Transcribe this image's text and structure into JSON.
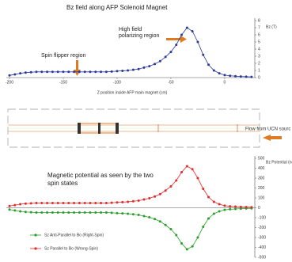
{
  "chart_data": [
    {
      "type": "line",
      "title": "Bz field along AFP Solenoid Magnet",
      "xlabel": "Z position inside AFP main magnet (cm)",
      "ylabel": "Bz (T)",
      "x": [
        -200,
        -195,
        -190,
        -185,
        -180,
        -175,
        -170,
        -165,
        -160,
        -155,
        -150,
        -145,
        -140,
        -135,
        -130,
        -125,
        -120,
        -115,
        -110,
        -105,
        -100,
        -95,
        -90,
        -85,
        -80,
        -75,
        -70,
        -65,
        -60,
        -55,
        -50,
        -45,
        -40,
        -35,
        -30,
        -25,
        -20,
        -15,
        -10,
        -5,
        0,
        5,
        10,
        15,
        20,
        25
      ],
      "series": [
        {
          "name": "Bz",
          "color": "#2b3a9a",
          "values": [
            0.3,
            0.45,
            0.6,
            0.7,
            0.75,
            0.8,
            0.8,
            0.8,
            0.8,
            0.8,
            0.8,
            0.8,
            0.8,
            0.8,
            0.8,
            0.8,
            0.8,
            0.8,
            0.8,
            0.85,
            0.9,
            0.95,
            1.0,
            1.1,
            1.2,
            1.4,
            1.6,
            1.9,
            2.3,
            2.9,
            3.6,
            4.6,
            6.0,
            7.0,
            6.5,
            5.0,
            3.2,
            1.8,
            1.0,
            0.6,
            0.35,
            0.25,
            0.2,
            0.15,
            0.12,
            0.1
          ]
        }
      ],
      "xlim": [
        -200,
        28
      ],
      "xticks": [
        -200,
        -150,
        -100,
        -50,
        0
      ],
      "ylim": [
        0,
        8
      ],
      "yticks": [
        0,
        1,
        2,
        3,
        4,
        5,
        6,
        7,
        8
      ],
      "annotations": [
        "High field polarizing region",
        "Spin flipper region"
      ]
    },
    {
      "type": "line",
      "title": "Magnetic potential as seen by the two spin states",
      "ylabel": "Bz Potential (neV)",
      "x": [
        -200,
        -195,
        -190,
        -185,
        -180,
        -175,
        -170,
        -165,
        -160,
        -155,
        -150,
        -145,
        -140,
        -135,
        -130,
        -125,
        -120,
        -115,
        -110,
        -105,
        -100,
        -95,
        -90,
        -85,
        -80,
        -75,
        -70,
        -65,
        -60,
        -55,
        -50,
        -45,
        -40,
        -35,
        -30,
        -25,
        -20,
        -15,
        -10,
        -5,
        0,
        5,
        10,
        15,
        20,
        25
      ],
      "series": [
        {
          "name": "Sz Anti-Parallel to Bo (Right-Spin)",
          "color": "#2aa02a",
          "values": [
            -18,
            -27,
            -36,
            -42,
            -45,
            -48,
            -48,
            -48,
            -48,
            -48,
            -48,
            -48,
            -48,
            -48,
            -48,
            -48,
            -48,
            -48,
            -48,
            -51,
            -54,
            -57,
            -60,
            -66,
            -72,
            -84,
            -96,
            -114,
            -138,
            -174,
            -216,
            -276,
            -360,
            -420,
            -390,
            -300,
            -192,
            -108,
            -60,
            -36,
            -21,
            -15,
            -12,
            -9,
            -7,
            -6
          ]
        },
        {
          "name": "Sz Parallel to Bo (Wrong-Spin)",
          "color": "#e52a2a",
          "values": [
            18,
            27,
            36,
            42,
            45,
            48,
            48,
            48,
            48,
            48,
            48,
            48,
            48,
            48,
            48,
            48,
            48,
            48,
            48,
            51,
            54,
            57,
            60,
            66,
            72,
            84,
            96,
            114,
            138,
            174,
            216,
            276,
            360,
            420,
            390,
            300,
            192,
            108,
            60,
            36,
            21,
            15,
            12,
            9,
            7,
            6
          ]
        }
      ],
      "xlim": [
        -200,
        28
      ],
      "ylim": [
        -500,
        500
      ],
      "yticks": [
        -500,
        -400,
        -300,
        -200,
        -100,
        0,
        100,
        200,
        300,
        400,
        500
      ]
    }
  ],
  "diagram": {
    "label": "Flow from UCN sourc"
  }
}
